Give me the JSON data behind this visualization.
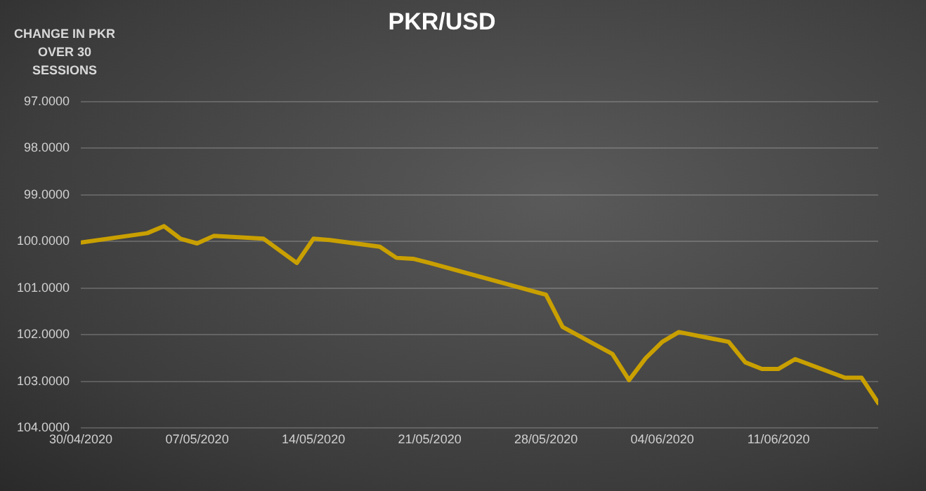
{
  "chart_data": {
    "type": "line",
    "title": "PKR/USD",
    "ylabel": "CHANGE IN PKR OVER 30 SESSIONS",
    "x": [
      "2020-04-30",
      "2020-05-04",
      "2020-05-05",
      "2020-05-06",
      "2020-05-07",
      "2020-05-08",
      "2020-05-11",
      "2020-05-13",
      "2020-05-14",
      "2020-05-15",
      "2020-05-18",
      "2020-05-19",
      "2020-05-20",
      "2020-05-21",
      "2020-05-28",
      "2020-05-29",
      "2020-06-01",
      "2020-06-02",
      "2020-06-03",
      "2020-06-04",
      "2020-06-05",
      "2020-06-08",
      "2020-06-09",
      "2020-06-10",
      "2020-06-11",
      "2020-06-12",
      "2020-06-15",
      "2020-06-16",
      "2020-06-17"
    ],
    "series": [
      {
        "color": "#c9a000",
        "values": [
          100.02,
          99.82,
          99.67,
          99.94,
          100.04,
          99.88,
          99.94,
          100.46,
          99.94,
          99.97,
          100.11,
          100.35,
          100.37,
          100.46,
          101.14,
          101.83,
          102.41,
          102.97,
          102.5,
          102.15,
          101.94,
          102.15,
          102.59,
          102.73,
          102.73,
          102.52,
          102.92,
          102.92,
          103.46
        ]
      }
    ],
    "xlim": [
      "2020-04-30",
      "2020-06-17"
    ],
    "xticks": [
      {
        "value": "2020-04-30",
        "label": "30/04/2020"
      },
      {
        "value": "2020-05-07",
        "label": "07/05/2020"
      },
      {
        "value": "2020-05-14",
        "label": "14/05/2020"
      },
      {
        "value": "2020-05-21",
        "label": "21/05/2020"
      },
      {
        "value": "2020-05-28",
        "label": "28/05/2020"
      },
      {
        "value": "2020-06-04",
        "label": "04/06/2020"
      },
      {
        "value": "2020-06-11",
        "label": "11/06/2020"
      }
    ],
    "ylim": [
      104,
      97
    ],
    "yticks": [
      {
        "value": 97,
        "label": "97.0000"
      },
      {
        "value": 98,
        "label": "98.0000"
      },
      {
        "value": 99,
        "label": "99.0000"
      },
      {
        "value": 100,
        "label": "100.0000"
      },
      {
        "value": 101,
        "label": "101.0000"
      },
      {
        "value": 102,
        "label": "102.0000"
      },
      {
        "value": 103,
        "label": "103.0000"
      },
      {
        "value": 104,
        "label": "104.0000"
      }
    ],
    "grid": "y",
    "legend": false,
    "marker": "none",
    "line_style": "solid"
  }
}
